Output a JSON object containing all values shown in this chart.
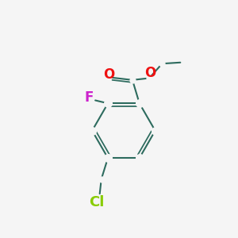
{
  "bg_color": "#f5f5f5",
  "bond_color": "#2d6b5e",
  "bond_width": 1.5,
  "atom_colors": {
    "O": "#ee1111",
    "F": "#cc22cc",
    "Cl": "#88cc00",
    "C": "#1a1a1a"
  },
  "font_size_atom": 11,
  "figsize": [
    3.0,
    3.0
  ],
  "dpi": 100
}
